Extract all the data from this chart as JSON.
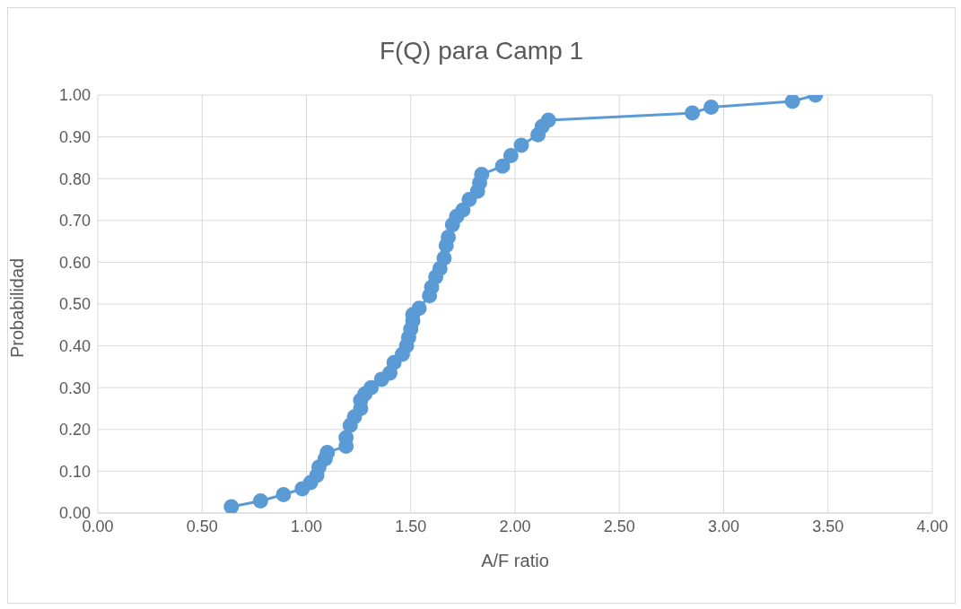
{
  "chart_data": {
    "type": "line",
    "title": "F(Q) para Camp 1",
    "xlabel": "A/F ratio",
    "ylabel": "Probabilidad",
    "x": [
      0.64,
      0.78,
      0.89,
      0.98,
      1.02,
      1.05,
      1.06,
      1.09,
      1.1,
      1.19,
      1.19,
      1.21,
      1.23,
      1.26,
      1.26,
      1.28,
      1.31,
      1.36,
      1.4,
      1.42,
      1.46,
      1.48,
      1.49,
      1.5,
      1.51,
      1.51,
      1.54,
      1.59,
      1.6,
      1.62,
      1.64,
      1.66,
      1.67,
      1.68,
      1.7,
      1.72,
      1.75,
      1.78,
      1.82,
      1.83,
      1.84,
      1.94,
      1.98,
      2.03,
      2.11,
      2.13,
      2.16,
      2.85,
      2.94,
      3.33,
      3.44
    ],
    "series": [
      {
        "color": "#5b9bd5",
        "values": [
          0.015,
          0.029,
          0.044,
          0.058,
          0.073,
          0.09,
          0.11,
          0.13,
          0.145,
          0.16,
          0.18,
          0.21,
          0.23,
          0.25,
          0.27,
          0.285,
          0.3,
          0.32,
          0.335,
          0.36,
          0.38,
          0.4,
          0.42,
          0.44,
          0.46,
          0.475,
          0.49,
          0.52,
          0.54,
          0.565,
          0.585,
          0.61,
          0.64,
          0.66,
          0.69,
          0.71,
          0.725,
          0.75,
          0.77,
          0.79,
          0.81,
          0.83,
          0.855,
          0.88,
          0.905,
          0.925,
          0.94,
          0.957,
          0.971,
          0.985,
          1.0
        ]
      }
    ],
    "xlim": [
      0,
      4
    ],
    "xticks": [
      {
        "value": 0,
        "label": "0.00"
      },
      {
        "value": 0.5,
        "label": "0.50"
      },
      {
        "value": 1,
        "label": "1.00"
      },
      {
        "value": 1.5,
        "label": "1.50"
      },
      {
        "value": 2,
        "label": "2.00"
      },
      {
        "value": 2.5,
        "label": "2.50"
      },
      {
        "value": 3,
        "label": "3.00"
      },
      {
        "value": 3.5,
        "label": "3.50"
      },
      {
        "value": 4,
        "label": "4.00"
      }
    ],
    "ylim": [
      0,
      1
    ],
    "yticks": [
      {
        "value": 0,
        "label": "0.00"
      },
      {
        "value": 0.1,
        "label": "0.10"
      },
      {
        "value": 0.2,
        "label": "0.20"
      },
      {
        "value": 0.3,
        "label": "0.30"
      },
      {
        "value": 0.4,
        "label": "0.40"
      },
      {
        "value": 0.5,
        "label": "0.50"
      },
      {
        "value": 0.6,
        "label": "0.60"
      },
      {
        "value": 0.7,
        "label": "0.70"
      },
      {
        "value": 0.8,
        "label": "0.80"
      },
      {
        "value": 0.9,
        "label": "0.90"
      },
      {
        "value": 1,
        "label": "1.00"
      }
    ],
    "grid": true,
    "marker": "circle"
  }
}
